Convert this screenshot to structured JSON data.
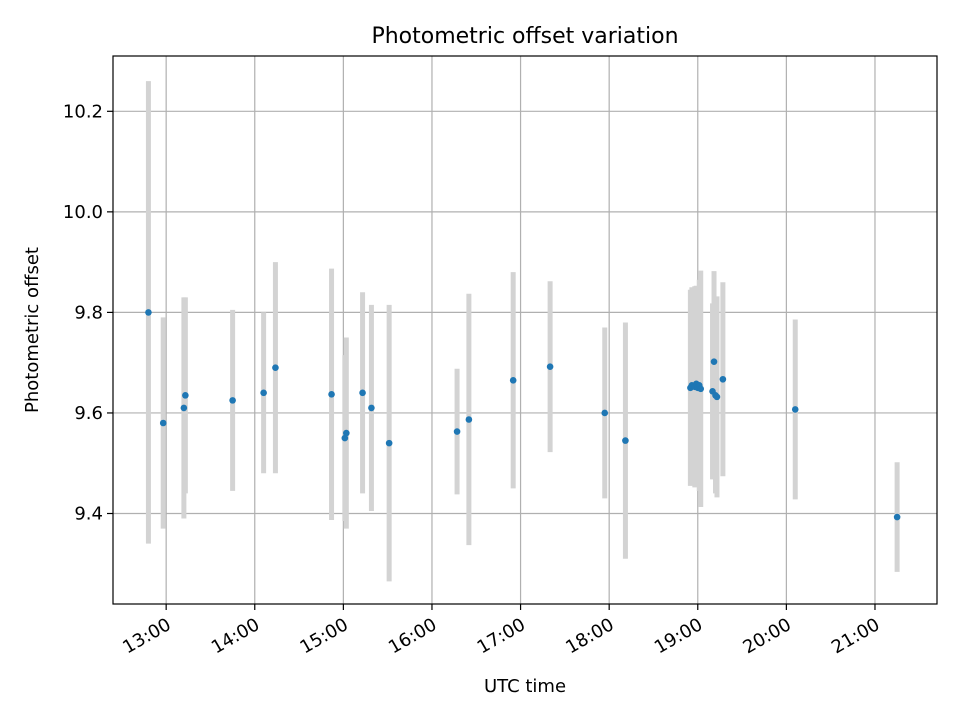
{
  "chart_data": {
    "type": "scatter",
    "title": "Photometric offset variation",
    "xlabel": "UTC time",
    "ylabel": "Photometric offset",
    "x_ticks": [
      "13:00",
      "14:00",
      "15:00",
      "16:00",
      "17:00",
      "18:00",
      "19:00",
      "20:00",
      "21:00"
    ],
    "y_ticks": [
      "9.4",
      "9.6",
      "9.8",
      "10.0",
      "10.2"
    ],
    "xlim": [
      "12:24",
      "21:42"
    ],
    "ylim": [
      9.22,
      10.31
    ],
    "grid": true,
    "colors": {
      "marker": "#1f77b4",
      "errorbar": "#d3d3d3",
      "grid": "#b0b0b0"
    },
    "points": [
      {
        "x": "12:48",
        "y": 9.8,
        "err": 0.46
      },
      {
        "x": "12:58",
        "y": 9.58,
        "err": 0.21
      },
      {
        "x": "13:12",
        "y": 9.61,
        "err": 0.22
      },
      {
        "x": "13:13",
        "y": 9.635,
        "err": 0.195
      },
      {
        "x": "13:45",
        "y": 9.625,
        "err": 0.18
      },
      {
        "x": "14:06",
        "y": 9.64,
        "err": 0.16
      },
      {
        "x": "14:14",
        "y": 9.69,
        "err": 0.21
      },
      {
        "x": "14:52",
        "y": 9.637,
        "err": 0.25
      },
      {
        "x": "15:01",
        "y": 9.55,
        "err": 0.165
      },
      {
        "x": "15:02",
        "y": 9.56,
        "err": 0.19
      },
      {
        "x": "15:13",
        "y": 9.64,
        "err": 0.2
      },
      {
        "x": "15:19",
        "y": 9.61,
        "err": 0.205
      },
      {
        "x": "15:31",
        "y": 9.54,
        "err": 0.275
      },
      {
        "x": "16:17",
        "y": 9.563,
        "err": 0.125
      },
      {
        "x": "16:25",
        "y": 9.587,
        "err": 0.25
      },
      {
        "x": "16:55",
        "y": 9.665,
        "err": 0.215
      },
      {
        "x": "17:20",
        "y": 9.692,
        "err": 0.17
      },
      {
        "x": "17:57",
        "y": 9.6,
        "err": 0.17
      },
      {
        "x": "18:11",
        "y": 9.545,
        "err": 0.235
      },
      {
        "x": "18:55",
        "y": 9.65,
        "err": 0.195
      },
      {
        "x": "18:56",
        "y": 9.655,
        "err": 0.195
      },
      {
        "x": "18:58",
        "y": 9.652,
        "err": 0.2
      },
      {
        "x": "18:59",
        "y": 9.658,
        "err": 0.195
      },
      {
        "x": "19:00",
        "y": 9.65,
        "err": 0.19
      },
      {
        "x": "19:01",
        "y": 9.655,
        "err": 0.21
      },
      {
        "x": "19:02",
        "y": 9.648,
        "err": 0.235
      },
      {
        "x": "19:10",
        "y": 9.643,
        "err": 0.175
      },
      {
        "x": "19:11",
        "y": 9.702,
        "err": 0.18
      },
      {
        "x": "19:12",
        "y": 9.635,
        "err": 0.195
      },
      {
        "x": "19:13",
        "y": 9.632,
        "err": 0.2
      },
      {
        "x": "19:17",
        "y": 9.667,
        "err": 0.193
      },
      {
        "x": "20:06",
        "y": 9.607,
        "err": 0.179
      },
      {
        "x": "21:15",
        "y": 9.393,
        "err": 0.109
      }
    ]
  }
}
